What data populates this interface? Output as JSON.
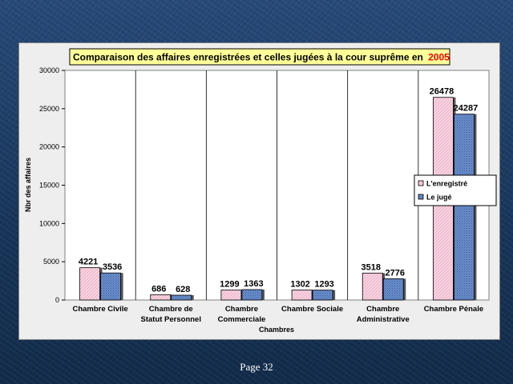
{
  "page": {
    "footer": "Page 32"
  },
  "chart_data": {
    "type": "bar",
    "title": "Comparaison des affaires enregistrées et celles jugées à la cour suprême en",
    "title_year": "2005",
    "xlabel": "Chambres",
    "ylabel": "Nbr des affaires",
    "ylim": [
      0,
      30000
    ],
    "yticks": [
      0,
      5000,
      10000,
      15000,
      20000,
      25000,
      30000
    ],
    "grid": false,
    "legend_position": "right",
    "categories": [
      [
        "Chambre Civile"
      ],
      [
        "Chambre de",
        "Statut Personnel"
      ],
      [
        "Chambre",
        "Commerciale"
      ],
      [
        "Chambre Sociale"
      ],
      [
        "Chambre",
        "Administrative"
      ],
      [
        "Chambre Pénale"
      ]
    ],
    "series": [
      {
        "name": "L'enregistré",
        "values": [
          4221,
          686,
          1299,
          1302,
          3518,
          26478
        ]
      },
      {
        "name": "Le jugé",
        "values": [
          3536,
          628,
          1363,
          1293,
          2776,
          24287
        ]
      }
    ],
    "colors": {
      "series_0": "#f6c9da",
      "series_1": "#5a82c2",
      "title_year": "#ff0000",
      "title_box": "#ffff99"
    }
  }
}
